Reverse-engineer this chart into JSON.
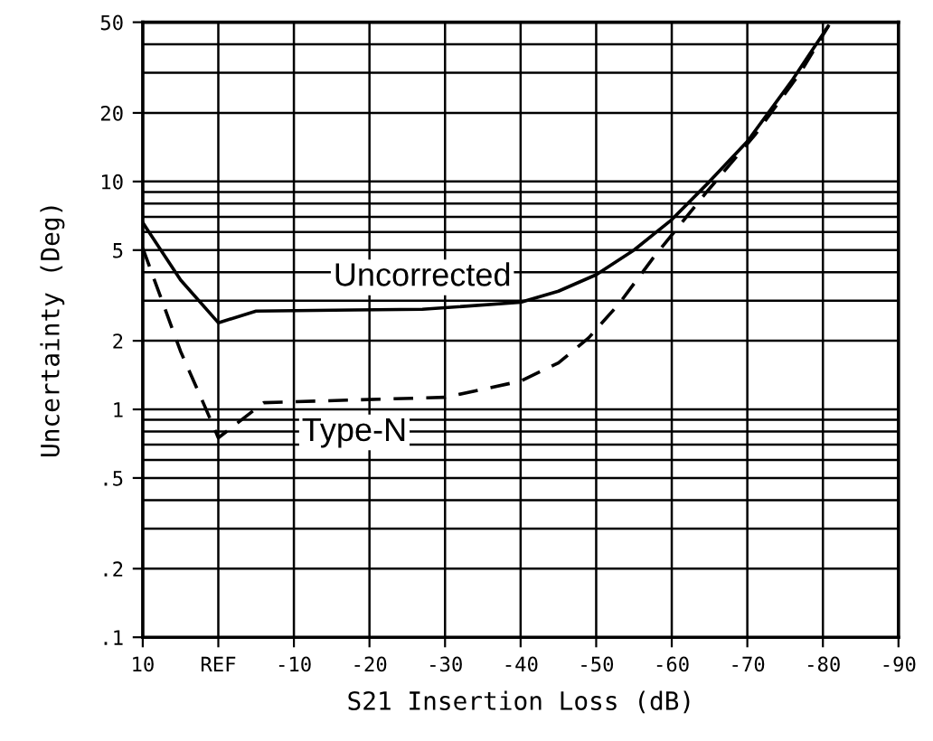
{
  "chart_data": {
    "type": "line",
    "xlabel": "S21 Insertion Loss (dB)",
    "ylabel": "Uncertainty (Deg)",
    "log": "y",
    "grid": true,
    "legend": false,
    "xlim": [
      10,
      -90
    ],
    "xticks": [
      10,
      {
        "value": 0,
        "label": "REF"
      },
      -10,
      -20,
      -30,
      -40,
      -50,
      -60,
      -70,
      -80,
      -90
    ],
    "ylim": [
      0.1,
      50
    ],
    "yticks": [
      {
        "value": 0.1,
        "label": ".1"
      },
      {
        "value": 0.2,
        "label": ".2"
      },
      {
        "value": 0.5,
        "label": ".5"
      },
      1,
      2,
      5,
      10,
      20,
      50
    ],
    "series": [
      {
        "name": "Uncorrected",
        "color": "#000000",
        "line_style": "solid",
        "x": [
          10,
          5,
          0,
          -5,
          -18,
          -27,
          -40,
          -45,
          -50,
          -55,
          -60,
          -65,
          -70,
          -76,
          -80.7
        ],
        "values": [
          6.6,
          3.7,
          2.4,
          2.7,
          2.73,
          2.75,
          2.95,
          3.3,
          3.9,
          5.0,
          6.8,
          10,
          15,
          28,
          48
        ]
      },
      {
        "name": "Type-N",
        "color": "#000000",
        "line_style": "dashed",
        "x": [
          10,
          5,
          2,
          0,
          -6,
          -18,
          -30,
          -40,
          -45,
          -49,
          -53,
          -57.5,
          -64.5,
          -71,
          -77,
          -80.7
        ],
        "values": [
          5.1,
          1.8,
          1.07,
          0.75,
          1.07,
          1.1,
          1.13,
          1.33,
          1.6,
          2.06,
          2.9,
          4.6,
          8.9,
          16,
          30,
          48
        ]
      }
    ]
  }
}
